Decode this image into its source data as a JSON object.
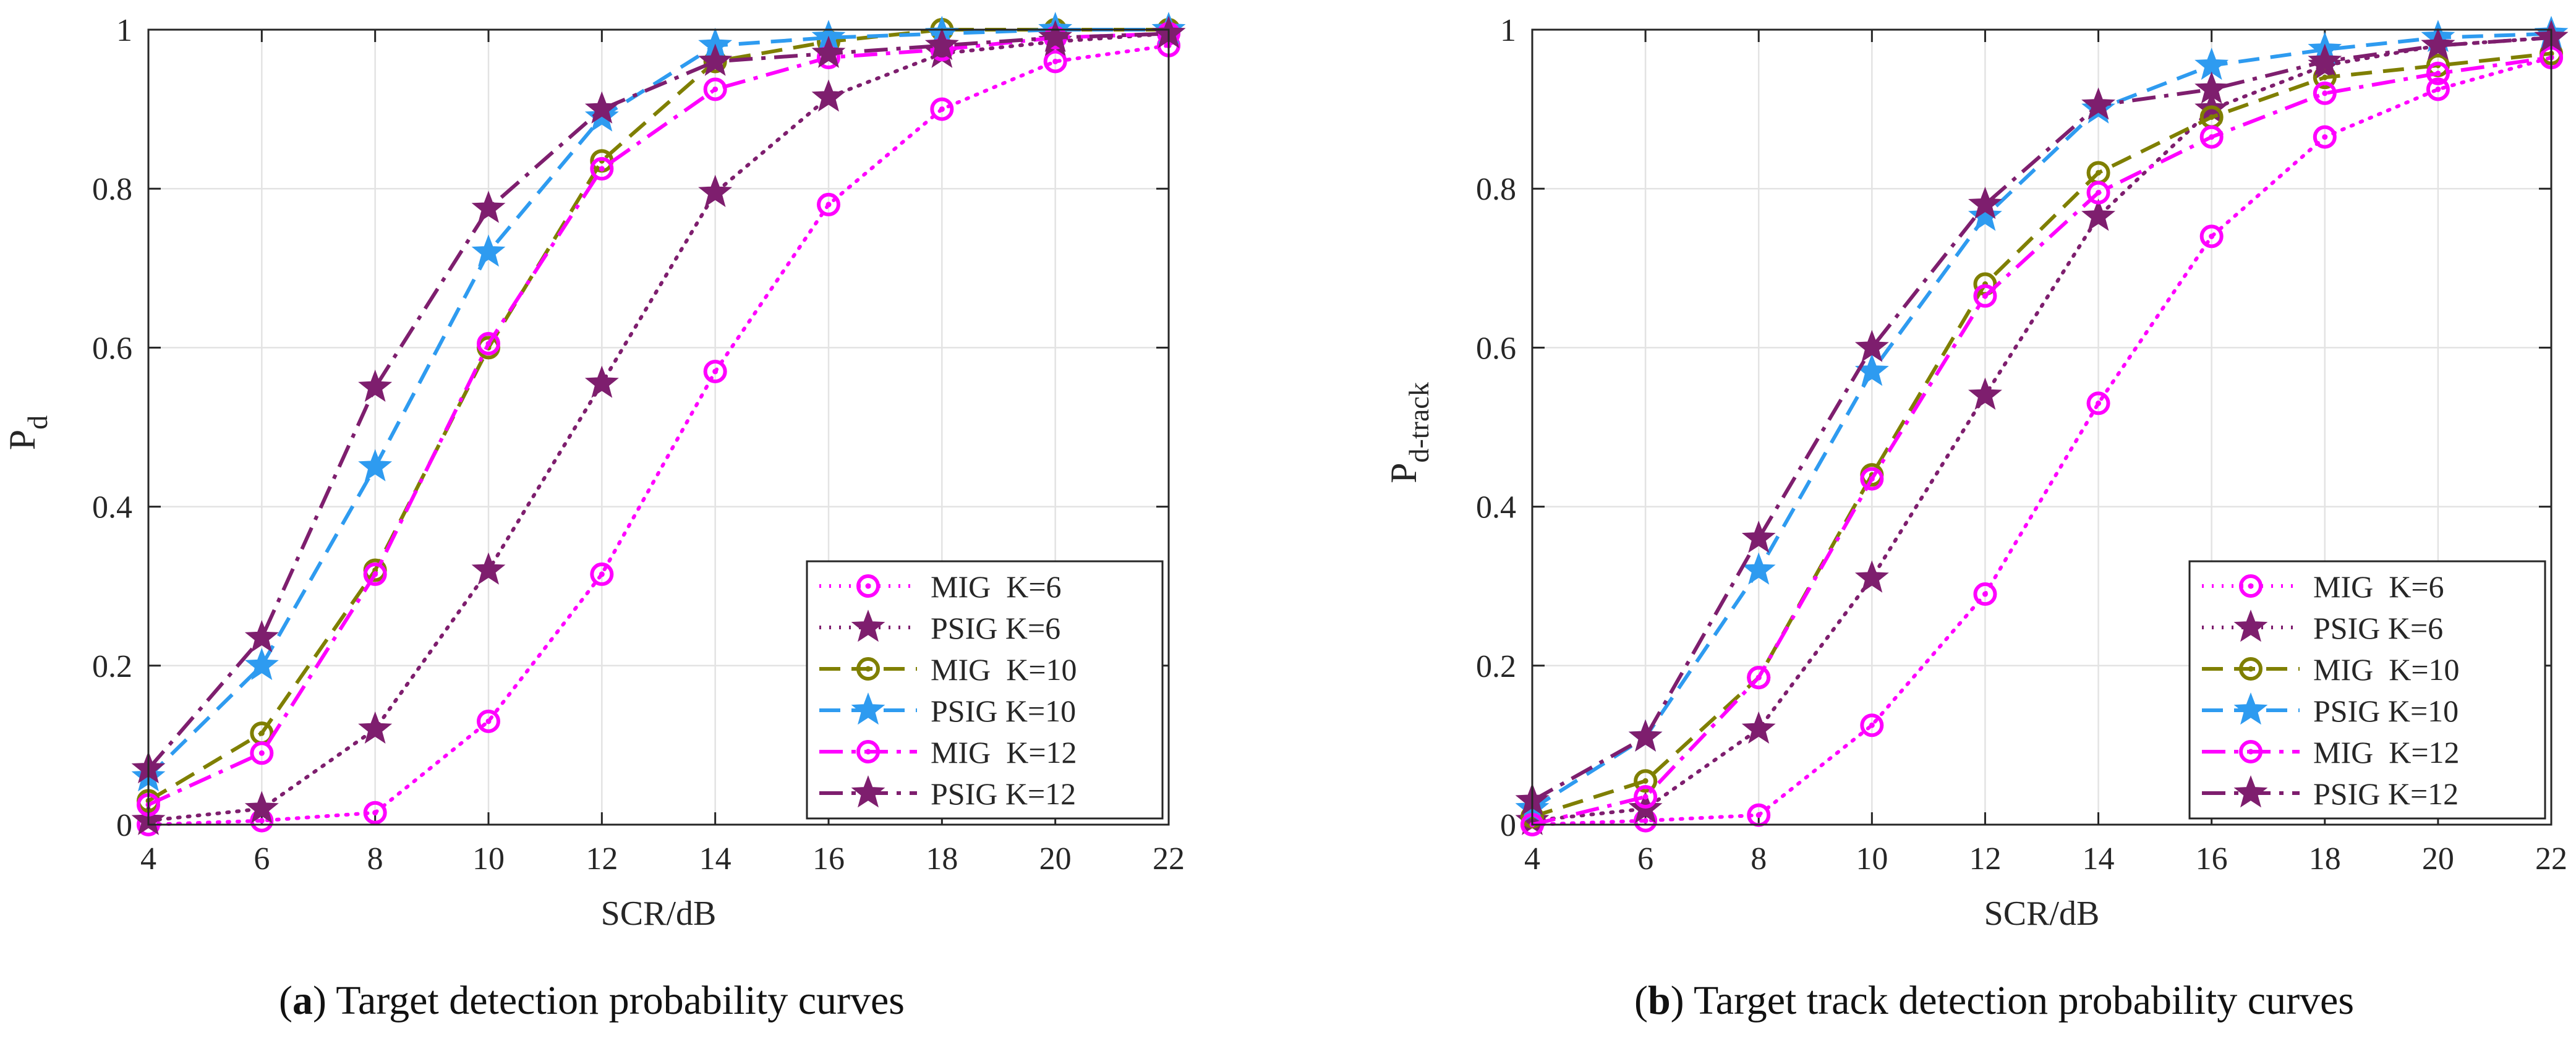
{
  "chart_data": [
    {
      "type": "line",
      "panel_tag": "a",
      "caption": "Target detection probability curves",
      "xlabel": "SCR/dB",
      "ylabel_main": "P",
      "ylabel_sub": "d",
      "xlim": [
        4,
        22
      ],
      "ylim": [
        0,
        1
      ],
      "xticks": [
        4,
        6,
        8,
        10,
        12,
        14,
        16,
        18,
        20,
        22
      ],
      "yticks": [
        0,
        0.2,
        0.4,
        0.6,
        0.8,
        1
      ],
      "ytick_labels": [
        "0",
        "0.2",
        "0.4",
        "0.6",
        "0.8",
        "1"
      ],
      "grid": true,
      "legend_position": "bottom-right",
      "x": [
        4,
        6,
        8,
        10,
        12,
        14,
        16,
        18,
        20,
        22
      ],
      "series": [
        {
          "name": "MIG  K=6",
          "color": "#ff00ff",
          "dash": "dot",
          "marker": "circle",
          "values": [
            0,
            0.005,
            0.015,
            0.13,
            0.315,
            0.57,
            0.78,
            0.9,
            0.96,
            0.98
          ]
        },
        {
          "name": "PSIG K=6",
          "color": "#7e1e6e",
          "dash": "dot",
          "marker": "star",
          "values": [
            0.005,
            0.02,
            0.12,
            0.32,
            0.555,
            0.795,
            0.915,
            0.97,
            0.985,
            0.995
          ]
        },
        {
          "name": "MIG  K=10",
          "color": "#7f7f00",
          "dash": "dash",
          "marker": "circle",
          "values": [
            0.03,
            0.115,
            0.32,
            0.6,
            0.835,
            0.96,
            0.985,
            1.0,
            1.0,
            1.0
          ]
        },
        {
          "name": "PSIG K=10",
          "color": "#2e9bf0",
          "dash": "dash",
          "marker": "star",
          "values": [
            0.06,
            0.2,
            0.45,
            0.72,
            0.89,
            0.98,
            0.99,
            0.995,
            1.0,
            1.0
          ]
        },
        {
          "name": "MIG  K=12",
          "color": "#ff00ff",
          "dash": "dashdot",
          "marker": "circle",
          "values": [
            0.025,
            0.09,
            0.315,
            0.605,
            0.825,
            0.925,
            0.965,
            0.975,
            0.99,
            0.995
          ]
        },
        {
          "name": "PSIG K=12",
          "color": "#7e1e6e",
          "dash": "dashdot",
          "marker": "star",
          "values": [
            0.07,
            0.235,
            0.55,
            0.775,
            0.9,
            0.96,
            0.97,
            0.98,
            0.99,
            0.995
          ]
        }
      ]
    },
    {
      "type": "line",
      "panel_tag": "b",
      "caption": "Target track detection probability curves",
      "xlabel": "SCR/dB",
      "ylabel_main": "P",
      "ylabel_sub": "d-track",
      "xlim": [
        4,
        22
      ],
      "ylim": [
        0,
        1
      ],
      "xticks": [
        4,
        6,
        8,
        10,
        12,
        14,
        16,
        18,
        20,
        22
      ],
      "yticks": [
        0,
        0.2,
        0.4,
        0.6,
        0.8,
        1
      ],
      "ytick_labels": [
        "0",
        "0.2",
        "0.4",
        "0.6",
        "0.8",
        "1"
      ],
      "grid": true,
      "legend_position": "bottom-right",
      "x": [
        4,
        6,
        8,
        10,
        12,
        14,
        16,
        18,
        20,
        22
      ],
      "series": [
        {
          "name": "MIG  K=6",
          "color": "#ff00ff",
          "dash": "dot",
          "marker": "circle",
          "values": [
            0,
            0.005,
            0.012,
            0.125,
            0.29,
            0.53,
            0.74,
            0.865,
            0.925,
            0.965
          ]
        },
        {
          "name": "PSIG K=6",
          "color": "#7e1e6e",
          "dash": "dot",
          "marker": "star",
          "values": [
            0.005,
            0.02,
            0.12,
            0.31,
            0.54,
            0.765,
            0.9,
            0.955,
            0.98,
            0.99
          ]
        },
        {
          "name": "MIG  K=10",
          "color": "#7f7f00",
          "dash": "dash",
          "marker": "circle",
          "values": [
            0.01,
            0.055,
            0.185,
            0.44,
            0.68,
            0.82,
            0.89,
            0.94,
            0.955,
            0.97
          ]
        },
        {
          "name": "PSIG K=10",
          "color": "#2e9bf0",
          "dash": "dash",
          "marker": "star",
          "values": [
            0.02,
            0.11,
            0.32,
            0.57,
            0.765,
            0.9,
            0.955,
            0.975,
            0.99,
            0.995
          ]
        },
        {
          "name": "MIG  K=12",
          "color": "#ff00ff",
          "dash": "dashdot",
          "marker": "circle",
          "values": [
            0,
            0.035,
            0.185,
            0.435,
            0.665,
            0.795,
            0.865,
            0.92,
            0.945,
            0.965
          ]
        },
        {
          "name": "PSIG K=12",
          "color": "#7e1e6e",
          "dash": "dashdot",
          "marker": "star",
          "values": [
            0.03,
            0.11,
            0.36,
            0.6,
            0.78,
            0.905,
            0.925,
            0.96,
            0.98,
            0.99
          ]
        }
      ]
    }
  ]
}
